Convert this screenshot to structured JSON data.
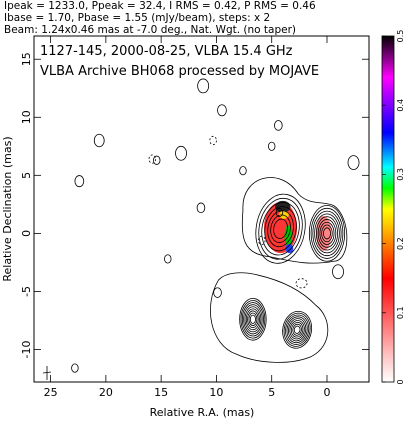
{
  "header": {
    "line1": "Ipeak = 1233.0, Ppeak = 32.4, I RMS = 0.42, P RMS = 0.46",
    "line2": "Ibase = 1.70, Pbase = 1.55 (mJy/beam), steps: x 2",
    "line3": "Beam: 1.24x0.46 mas at -7.0 deg., Nat. Wgt. (no taper)"
  },
  "annotation": {
    "line1": "1127-145, 2000-08-25, VLBA 15.4 GHz",
    "line2": "VLBA Archive BH068 processed by MOJAVE"
  },
  "colors": {
    "colormap": [
      "#ffffff",
      "#ffc0c0",
      "#ff0000",
      "#ff8000",
      "#ffd000",
      "#ffff00",
      "#00ff00",
      "#00ffff",
      "#0000ff",
      "#8000ff",
      "#ff00ff",
      "#000000"
    ]
  },
  "chart_data": {
    "type": "contour",
    "xlabel": "Relative R.A. (mas)",
    "ylabel": "Relative Declination (mas)",
    "xlim": [
      26.5,
      -3.8
    ],
    "ylim": [
      -12.8,
      17.0
    ],
    "xticks": [
      25,
      20,
      15,
      10,
      5,
      0
    ],
    "yticks": [
      15,
      10,
      5,
      0,
      -5,
      -10
    ],
    "colorbar": {
      "range": [
        0,
        0.5
      ],
      "ticks": [
        "0",
        "0.1",
        "0.2",
        "0.3",
        "0.4",
        "0.5"
      ]
    },
    "features": [
      {
        "x": 0.0,
        "y": 0.0,
        "kind": "core"
      },
      {
        "x": 4.2,
        "y": 0.4,
        "kind": "polarized-knot"
      },
      {
        "x": 6.7,
        "y": -7.4,
        "kind": "jet-knot"
      },
      {
        "x": 2.7,
        "y": -8.3,
        "kind": "jet-knot"
      }
    ]
  }
}
